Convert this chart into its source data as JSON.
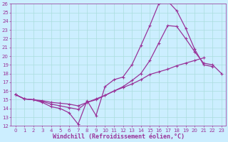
{
  "xlabel": "Windchill (Refroidissement éolien,°C)",
  "bg_color": "#cceeff",
  "grid_color": "#aadddd",
  "line_color": "#993399",
  "xlim": [
    -0.5,
    23.5
  ],
  "ylim": [
    12,
    26
  ],
  "xticks": [
    0,
    1,
    2,
    3,
    4,
    5,
    6,
    7,
    8,
    9,
    10,
    11,
    12,
    13,
    14,
    15,
    16,
    17,
    18,
    19,
    20,
    21,
    22,
    23
  ],
  "yticks": [
    12,
    13,
    14,
    15,
    16,
    17,
    18,
    19,
    20,
    21,
    22,
    23,
    24,
    25,
    26
  ],
  "line1_x": [
    0,
    1,
    2,
    3,
    4,
    5,
    6,
    7,
    8,
    9,
    10,
    11,
    12,
    13,
    14,
    15,
    16,
    17,
    18,
    19,
    20,
    21,
    22,
    23
  ],
  "line1_y": [
    15.6,
    15.1,
    15.0,
    14.7,
    14.2,
    14.0,
    13.5,
    12.2,
    14.9,
    13.2,
    16.5,
    17.3,
    17.6,
    19.0,
    21.2,
    23.5,
    26.0,
    26.3,
    25.2,
    23.2,
    20.8,
    19.0,
    18.8,
    null
  ],
  "line2_x": [
    0,
    1,
    2,
    3,
    4,
    5,
    6,
    7,
    8,
    9,
    10,
    11,
    12,
    13,
    14,
    15,
    16,
    17,
    18,
    19,
    20,
    21,
    22,
    23
  ],
  "line2_y": [
    15.6,
    15.1,
    15.0,
    14.8,
    14.5,
    14.3,
    14.1,
    13.9,
    14.7,
    15.1,
    15.5,
    16.0,
    16.4,
    16.8,
    17.3,
    17.9,
    18.2,
    18.5,
    18.9,
    19.2,
    19.5,
    19.8,
    null,
    null
  ],
  "line3_x": [
    0,
    1,
    2,
    3,
    4,
    5,
    6,
    7,
    8,
    9,
    10,
    11,
    12,
    13,
    14,
    15,
    16,
    17,
    18,
    19,
    20,
    21,
    22,
    23
  ],
  "line3_y": [
    15.6,
    15.1,
    15.0,
    14.9,
    14.7,
    14.6,
    14.5,
    14.3,
    14.7,
    15.0,
    15.5,
    16.0,
    16.5,
    17.2,
    18.0,
    19.5,
    21.5,
    23.5,
    23.4,
    22.0,
    20.5,
    19.2,
    19.0,
    18.0
  ],
  "markersize": 3,
  "linewidth": 0.9,
  "tick_fontsize": 5,
  "label_fontsize": 6
}
